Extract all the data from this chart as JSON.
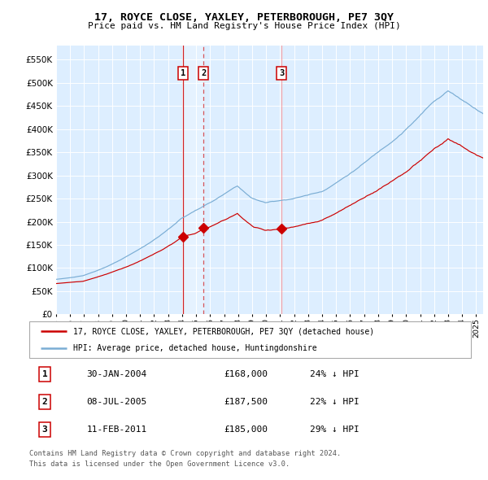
{
  "title": "17, ROYCE CLOSE, YAXLEY, PETERBOROUGH, PE7 3QY",
  "subtitle": "Price paid vs. HM Land Registry's House Price Index (HPI)",
  "legend_red": "17, ROYCE CLOSE, YAXLEY, PETERBOROUGH, PE7 3QY (detached house)",
  "legend_blue": "HPI: Average price, detached house, Huntingdonshire",
  "footer1": "Contains HM Land Registry data © Crown copyright and database right 2024.",
  "footer2": "This data is licensed under the Open Government Licence v3.0.",
  "transactions": [
    {
      "num": 1,
      "date": "30-JAN-2004",
      "price": "£168,000",
      "pct": "24% ↓ HPI",
      "year_dec": 2004.08,
      "value": 168000
    },
    {
      "num": 2,
      "date": "08-JUL-2005",
      "price": "£187,500",
      "pct": "22% ↓ HPI",
      "year_dec": 2005.52,
      "value": 187500
    },
    {
      "num": 3,
      "date": "11-FEB-2011",
      "price": "£185,000",
      "pct": "29% ↓ HPI",
      "year_dec": 2011.11,
      "value": 185000
    }
  ],
  "red_color": "#cc0000",
  "blue_color": "#7aadd4",
  "plot_bg": "#ddeeff",
  "ylim": [
    0,
    580000
  ],
  "yticks": [
    0,
    50000,
    100000,
    150000,
    200000,
    250000,
    300000,
    350000,
    400000,
    450000,
    500000,
    550000
  ],
  "xlim_start": 1995.0,
  "xlim_end": 2025.5,
  "xtick_years": [
    1995,
    1996,
    1997,
    1998,
    1999,
    2000,
    2001,
    2002,
    2003,
    2004,
    2005,
    2006,
    2007,
    2008,
    2009,
    2010,
    2011,
    2012,
    2013,
    2014,
    2015,
    2016,
    2017,
    2018,
    2019,
    2020,
    2021,
    2022,
    2023,
    2024,
    2025
  ]
}
